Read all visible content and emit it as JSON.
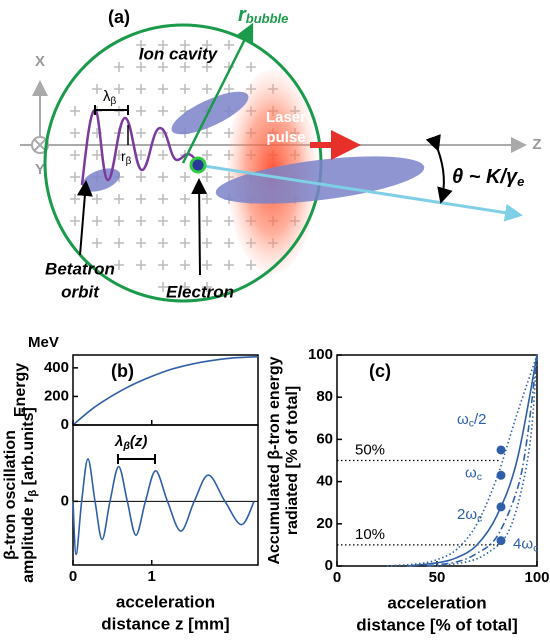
{
  "panel_a": {
    "label": "(a)",
    "axis_x": "X",
    "axis_y": "Y",
    "axis_z": "Z",
    "r_bubble": {
      "main": "r",
      "sub": "bubble"
    },
    "ion_cavity": "Ion cavity",
    "lambda_beta": {
      "main": "λ",
      "sub": "β"
    },
    "r_beta": {
      "main": "r",
      "sub": "β"
    },
    "laser": [
      "Laser",
      "pulse"
    ],
    "theta": {
      "main": "θ ~ K/γ",
      "sub": "e"
    },
    "betatron": [
      "Betatron",
      "orbit"
    ],
    "electron": "Electron"
  },
  "chart_data": [
    {
      "type": "line",
      "label": "(b)",
      "ylabel": "Energy",
      "unit": "MeV",
      "x": [
        0,
        0.25,
        0.5,
        0.75,
        1,
        1.25,
        1.5,
        1.75,
        2,
        2.35
      ],
      "series": [
        {
          "color": "#2f5fa8",
          "values": [
            0,
            115,
            205,
            280,
            340,
            390,
            425,
            450,
            468,
            478
          ]
        }
      ],
      "xlim": [
        0,
        2.35
      ],
      "ylim": [
        0,
        490
      ],
      "yticks": [
        0,
        200,
        400
      ]
    },
    {
      "type": "line",
      "ylabel": [
        "β-tron oscillation",
        {
          "main": "amplitude r",
          "sub": "β",
          "tail": " [arb.units]"
        }
      ],
      "xlabel": [
        "acceleration",
        "distance z [mm]"
      ],
      "annotation": {
        "main": "λ",
        "sub": "β",
        "tail": "(z)"
      },
      "x": [
        0,
        0.04,
        0.11,
        0.19,
        0.28,
        0.37,
        0.47,
        0.58,
        0.69,
        0.8,
        0.92,
        1.05,
        1.2,
        1.37,
        1.54,
        1.72,
        1.93,
        2.14,
        2.3
      ],
      "series": [
        {
          "color": "#2f5fa8",
          "values": [
            0,
            -1.25,
            0,
            1.0,
            0,
            -0.9,
            0,
            0.82,
            0,
            -0.8,
            0,
            0.72,
            0,
            -0.7,
            0,
            0.62,
            0,
            -0.55,
            0
          ]
        }
      ],
      "xlim": [
        0,
        2.35
      ],
      "ylim": [
        -1.5,
        1.8
      ],
      "xticks": [
        0,
        1
      ],
      "yticks": [
        0
      ]
    },
    {
      "type": "line",
      "label": "(c)",
      "ylabel": [
        "Accumulated β-tron energy",
        "radiated [% of total]"
      ],
      "xlabel": [
        "acceleration",
        "distance [% of total]"
      ],
      "series": [
        {
          "color": "#2f5fa8",
          "dash": "dotted",
          "x": [
            25,
            40,
            50,
            60,
            70,
            80,
            90,
            100
          ],
          "values": [
            0,
            1,
            3,
            8,
            20,
            42,
            72,
            100
          ]
        },
        {
          "color": "#2f5fa8",
          "dash": "solid",
          "x": [
            35,
            50,
            60,
            70,
            80,
            90,
            100
          ],
          "values": [
            0,
            1.5,
            4,
            10,
            24,
            50,
            100
          ]
        },
        {
          "color": "#2f5fa8",
          "dash": "dashdot",
          "x": [
            45,
            60,
            70,
            80,
            90,
            95,
            100
          ],
          "values": [
            0,
            2,
            6,
            14,
            36,
            60,
            100
          ]
        },
        {
          "color": "#2f5fa8",
          "dash": "dotted",
          "x": [
            50,
            65,
            75,
            85,
            92,
            97,
            100
          ],
          "values": [
            0,
            2,
            6,
            15,
            35,
            62,
            100
          ]
        }
      ],
      "points": [
        {
          "label": {
            "main": "ω",
            "sub": "c",
            "tail": "/2"
          },
          "x": 82,
          "y": 55
        },
        {
          "label": {
            "main": "ω",
            "sub": "c",
            "tail": ""
          },
          "x": 82,
          "y": 43
        },
        {
          "label": {
            "main": "2ω",
            "sub": "c",
            "tail": ""
          },
          "x": 82,
          "y": 28
        },
        {
          "label": {
            "main": "4ω",
            "sub": "c",
            "tail": ""
          },
          "x": 82,
          "y": 12
        }
      ],
      "hlines": [
        {
          "value": 50,
          "label": "50%"
        },
        {
          "value": 10,
          "label": "10%"
        }
      ],
      "xlim": [
        0,
        100
      ],
      "ylim": [
        0,
        100
      ],
      "xticks": [
        0,
        50,
        100
      ],
      "yticks": [
        0,
        20,
        40,
        60,
        80,
        100
      ]
    }
  ]
}
